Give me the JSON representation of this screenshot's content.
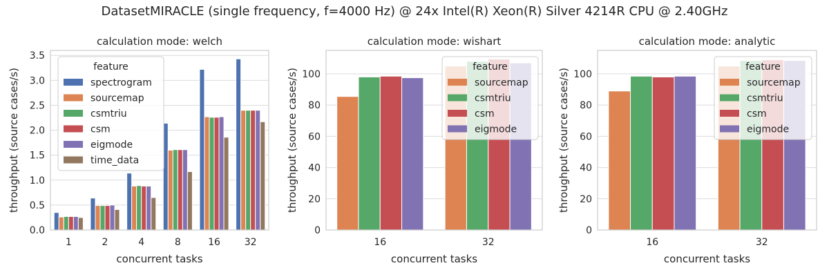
{
  "figure": {
    "title": "DatasetMIRACLE (single frequency, f=4000 Hz) @ 24x Intel(R) Xeon(R) Silver 4214R CPU @ 2.40GHz"
  },
  "colors": {
    "spectrogram": "#4c72b0",
    "sourcemap": "#dd8452",
    "csmtriu": "#55a868",
    "csm": "#c44e52",
    "eigmode": "#8172b3",
    "time_data": "#937860",
    "grid": "#dcdcdc",
    "spine": "#cccccc"
  },
  "chart_data": [
    {
      "type": "bar",
      "title": "calculation mode: welch",
      "xlabel": "concurrent tasks",
      "ylabel": "throughput (source cases/s)",
      "categories": [
        "1",
        "2",
        "4",
        "8",
        "16",
        "32"
      ],
      "ylim": [
        0,
        3.6
      ],
      "yticks": [
        0.0,
        0.5,
        1.0,
        1.5,
        2.0,
        2.5,
        3.0,
        3.5
      ],
      "ytick_labels": [
        "0.0",
        "0.5",
        "1.0",
        "1.5",
        "2.0",
        "2.5",
        "3.0",
        "3.5"
      ],
      "grid": true,
      "legend": {
        "title": "feature",
        "placement": "upper-left"
      },
      "series": [
        {
          "name": "spectrogram",
          "values": [
            0.35,
            0.64,
            1.14,
            2.14,
            3.22,
            3.43
          ]
        },
        {
          "name": "sourcemap",
          "values": [
            0.26,
            0.49,
            0.88,
            1.6,
            2.27,
            2.4
          ]
        },
        {
          "name": "csmtriu",
          "values": [
            0.27,
            0.49,
            0.89,
            1.61,
            2.26,
            2.4
          ]
        },
        {
          "name": "csm",
          "values": [
            0.27,
            0.49,
            0.88,
            1.61,
            2.26,
            2.4
          ]
        },
        {
          "name": "eigmode",
          "values": [
            0.27,
            0.5,
            0.88,
            1.61,
            2.27,
            2.4
          ]
        },
        {
          "name": "time_data",
          "values": [
            0.25,
            0.41,
            0.65,
            1.17,
            1.86,
            2.17
          ]
        }
      ]
    },
    {
      "type": "bar",
      "title": "calculation mode: wishart",
      "xlabel": "concurrent tasks",
      "ylabel": "throughput (source cases/s)",
      "categories": [
        "16",
        "32"
      ],
      "ylim": [
        0,
        115
      ],
      "yticks": [
        0,
        20,
        40,
        60,
        80,
        100
      ],
      "ytick_labels": [
        "0",
        "20",
        "40",
        "60",
        "80",
        "100"
      ],
      "grid": true,
      "legend": {
        "title": "feature",
        "placement": "upper-right"
      },
      "series": [
        {
          "name": "sourcemap",
          "values": [
            85.5,
            105
          ]
        },
        {
          "name": "csmtriu",
          "values": [
            98,
            108
          ]
        },
        {
          "name": "csm",
          "values": [
            98.5,
            109.5
          ]
        },
        {
          "name": "eigmode",
          "values": [
            97.5,
            107
          ]
        }
      ]
    },
    {
      "type": "bar",
      "title": "calculation mode: analytic",
      "xlabel": "concurrent tasks",
      "ylabel": "throughput (source cases/s)",
      "categories": [
        "16",
        "32"
      ],
      "ylim": [
        0,
        115
      ],
      "yticks": [
        0,
        20,
        40,
        60,
        80,
        100
      ],
      "ytick_labels": [
        "0",
        "20",
        "40",
        "60",
        "80",
        "100"
      ],
      "grid": true,
      "legend": {
        "title": "feature",
        "placement": "upper-right"
      },
      "series": [
        {
          "name": "sourcemap",
          "values": [
            89,
            105
          ]
        },
        {
          "name": "csmtriu",
          "values": [
            98.5,
            108.5
          ]
        },
        {
          "name": "csm",
          "values": [
            98,
            109
          ]
        },
        {
          "name": "eigmode",
          "values": [
            98.5,
            108.5
          ]
        }
      ]
    }
  ]
}
